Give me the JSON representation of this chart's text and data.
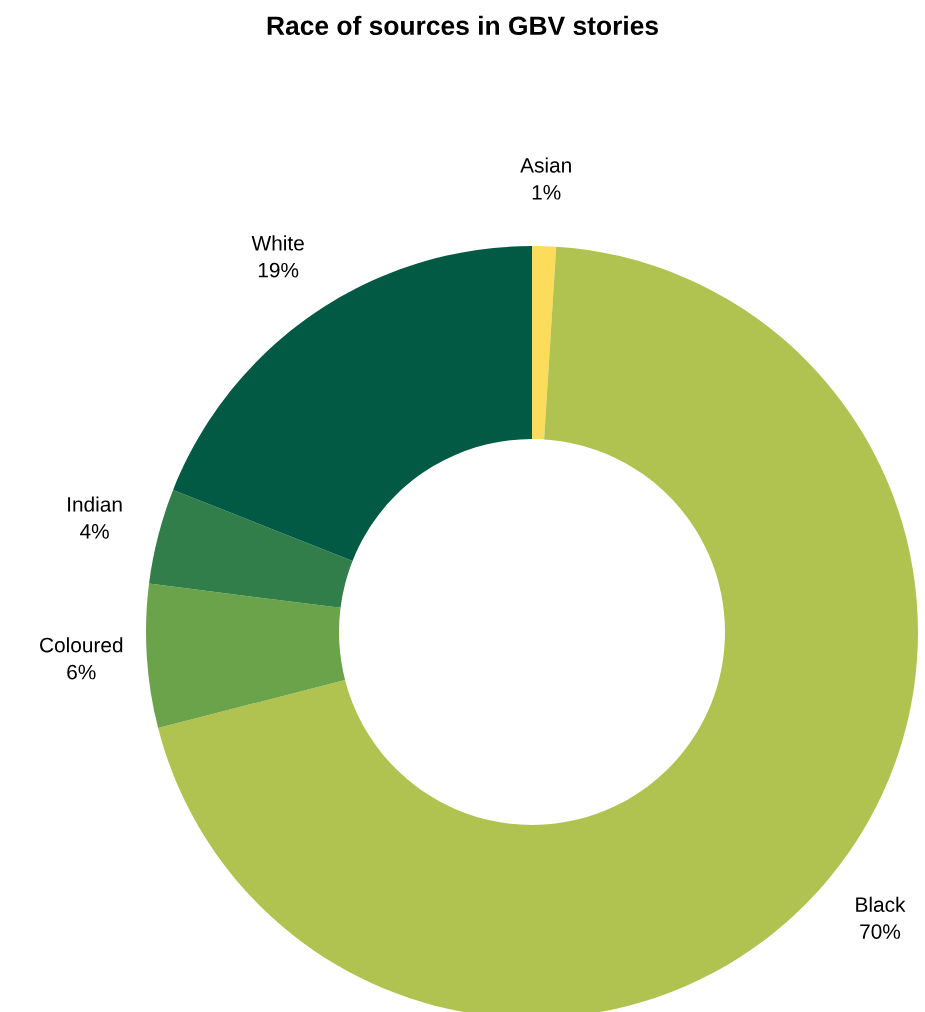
{
  "chart_data": {
    "type": "donut",
    "title": "Race of sources in GBV stories",
    "categories": [
      "Asian",
      "Black",
      "Coloured",
      "Indian",
      "White"
    ],
    "values": [
      1,
      70,
      6,
      4,
      19
    ],
    "colors": [
      "#fddc5b",
      "#b0c24f",
      "#6aa34a",
      "#327e4a",
      "#035a44"
    ],
    "value_labels": [
      "1%",
      "70%",
      "6%",
      "4%",
      "19%"
    ],
    "legend": false
  }
}
